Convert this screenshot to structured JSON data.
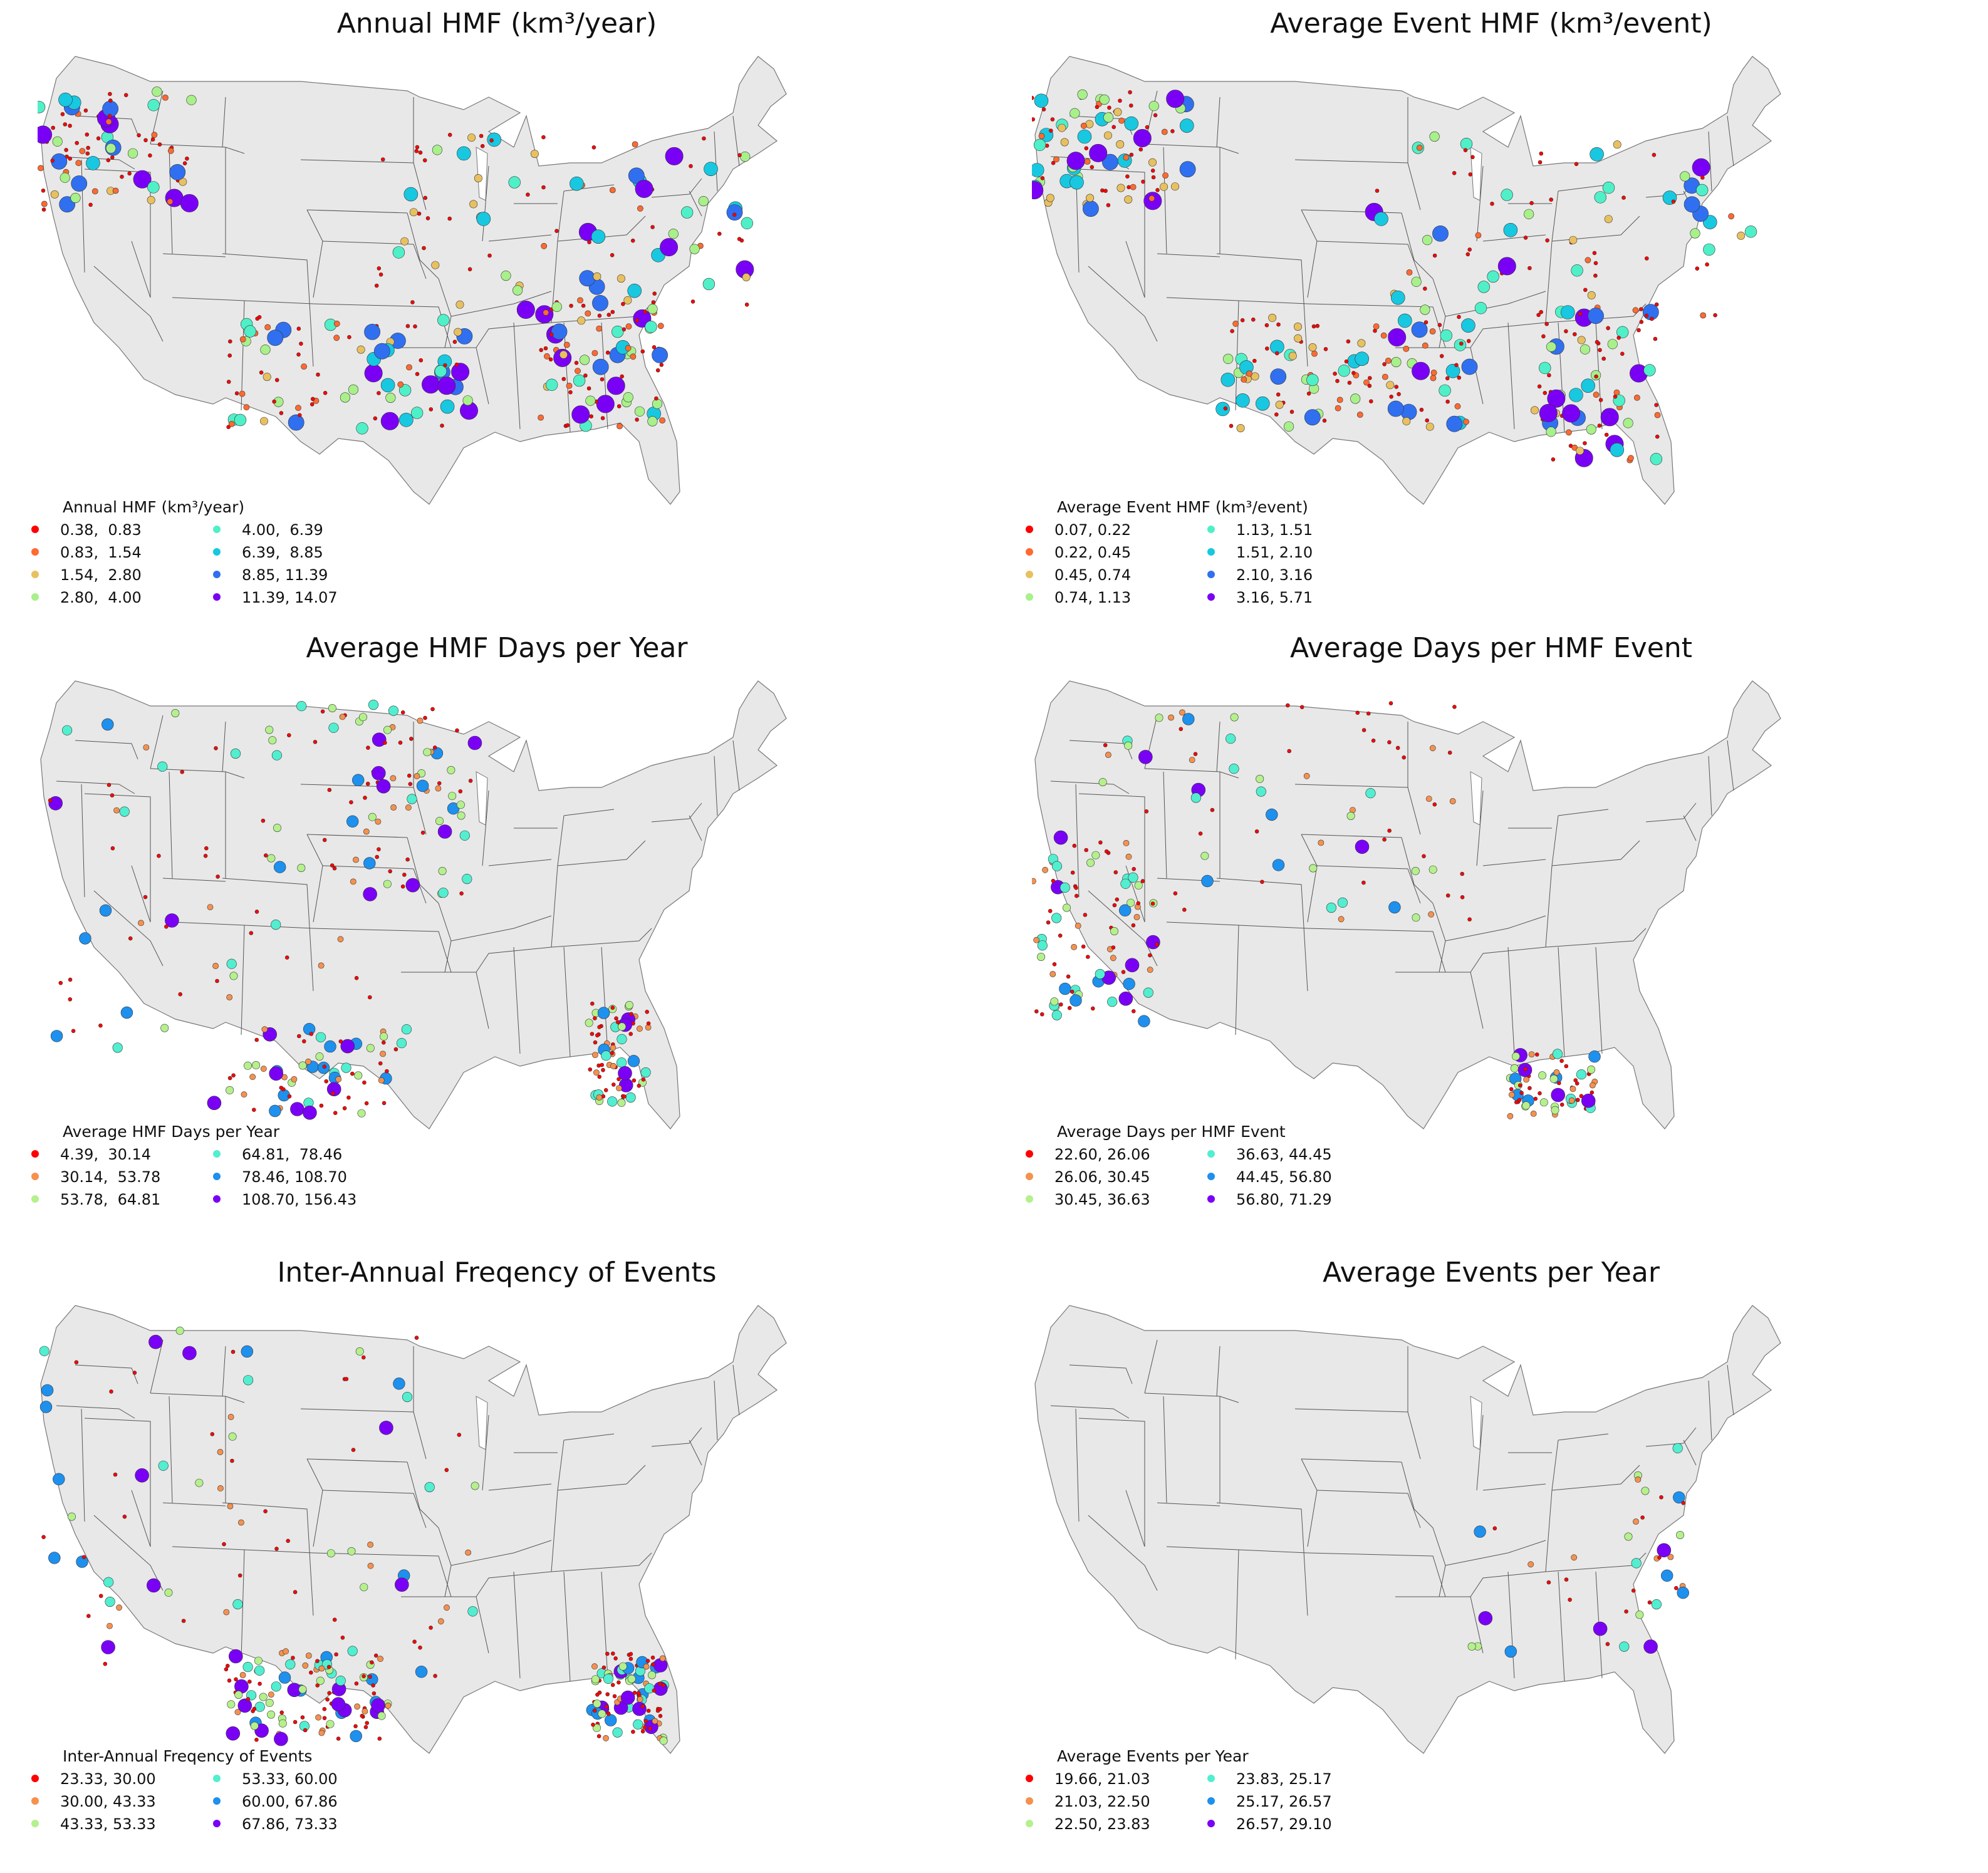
{
  "panels": [
    {
      "title": "Annual HMF (km³/year)",
      "legend_title": "Annual HMF (km³/year)",
      "legend_items": [
        {
          "label": "0.38,  0.83",
          "color": "#ff0000"
        },
        {
          "label": "0.83,  1.54",
          "color": "#ff6a30"
        },
        {
          "label": "1.54,  2.80",
          "color": "#e8c060"
        },
        {
          "label": "2.80,  4.00",
          "color": "#a8f08a"
        },
        {
          "label": "4.00,  6.39",
          "color": "#4ff0c8"
        },
        {
          "label": "6.39,  8.85",
          "color": "#18c8e0"
        },
        {
          "label": "8.85, 11.39",
          "color": "#3070f0"
        },
        {
          "label": "11.39, 14.07",
          "color": "#7a00f5"
        }
      ]
    },
    {
      "title": "Average Event HMF (km³/event)",
      "legend_title": "Average Event HMF (km³/event)",
      "legend_items": [
        {
          "label": "0.07, 0.22",
          "color": "#ff0000"
        },
        {
          "label": "0.22, 0.45",
          "color": "#ff6a30"
        },
        {
          "label": "0.45, 0.74",
          "color": "#e8c060"
        },
        {
          "label": "0.74, 1.13",
          "color": "#a8f08a"
        },
        {
          "label": "1.13, 1.51",
          "color": "#4ff0c8"
        },
        {
          "label": "1.51, 2.10",
          "color": "#18c8e0"
        },
        {
          "label": "2.10, 3.16",
          "color": "#3070f0"
        },
        {
          "label": "3.16, 5.71",
          "color": "#7a00f5"
        }
      ]
    },
    {
      "title": "Average HMF Days per Year",
      "legend_title": "Average HMF Days per Year",
      "legend_items": [
        {
          "label": "4.39,  30.14",
          "color": "#ff0000"
        },
        {
          "label": "30.14,  53.78",
          "color": "#f5914f"
        },
        {
          "label": "53.78,  64.81",
          "color": "#b4f08c"
        },
        {
          "label": "64.81,  78.46",
          "color": "#52eed0"
        },
        {
          "label": "78.46, 108.70",
          "color": "#1e90ee"
        },
        {
          "label": "108.70, 156.43",
          "color": "#7a00f5"
        }
      ]
    },
    {
      "title": "Average Days per HMF Event",
      "legend_title": "Average Days per HMF Event",
      "legend_items": [
        {
          "label": "22.60, 26.06",
          "color": "#ff0000"
        },
        {
          "label": "26.06, 30.45",
          "color": "#f5914f"
        },
        {
          "label": "30.45, 36.63",
          "color": "#b4f08c"
        },
        {
          "label": "36.63, 44.45",
          "color": "#52eed0"
        },
        {
          "label": "44.45, 56.80",
          "color": "#1e90ee"
        },
        {
          "label": "56.80, 71.29",
          "color": "#7a00f5"
        }
      ]
    },
    {
      "title": "Inter-Annual Freqency of Events",
      "legend_title": "Inter-Annual Freqency of Events",
      "legend_items": [
        {
          "label": "23.33, 30.00",
          "color": "#ff0000"
        },
        {
          "label": "30.00, 43.33",
          "color": "#f5914f"
        },
        {
          "label": "43.33, 53.33",
          "color": "#b4f08c"
        },
        {
          "label": "53.33, 60.00",
          "color": "#52eed0"
        },
        {
          "label": "60.00, 67.86",
          "color": "#1e90ee"
        },
        {
          "label": "67.86, 73.33",
          "color": "#7a00f5"
        }
      ]
    },
    {
      "title": "Average Events per Year",
      "legend_title": "Average Events per Year",
      "legend_items": [
        {
          "label": "19.66, 21.03",
          "color": "#ff0000"
        },
        {
          "label": "21.03, 22.50",
          "color": "#f5914f"
        },
        {
          "label": "22.50, 23.83",
          "color": "#b4f08c"
        },
        {
          "label": "23.83, 25.17",
          "color": "#52eed0"
        },
        {
          "label": "25.17, 26.57",
          "color": "#1e90ee"
        },
        {
          "label": "26.57, 29.10",
          "color": "#7a00f5"
        }
      ]
    }
  ],
  "map_style": {
    "land_fill": "#e8e8e8",
    "border_color": "#555555"
  }
}
